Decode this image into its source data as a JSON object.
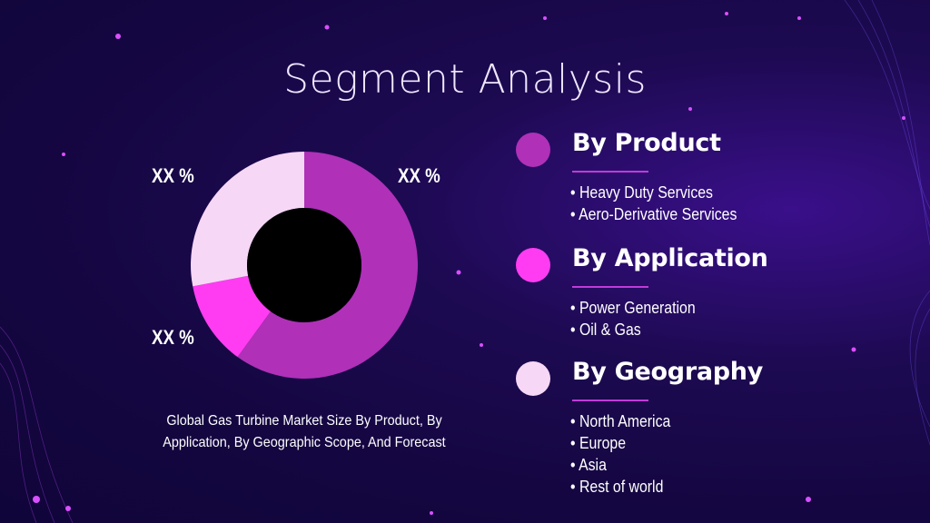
{
  "title": "Segment Analysis",
  "chart_data": {
    "type": "pie",
    "style": "donut",
    "values": [
      60,
      12,
      28
    ],
    "colors": [
      "#b030b8",
      "#ff3cf2",
      "#f7d7f6"
    ],
    "labels": [
      "XX %",
      "XX %",
      "XX %"
    ]
  },
  "caption": "Global Gas Turbine Market Size By Product, By Application, By Geographic Scope, And Forecast",
  "segments": [
    {
      "heading": "By Product",
      "color": "#b030b8",
      "items": [
        "Heavy Duty Services",
        "Aero-Derivative Services"
      ]
    },
    {
      "heading": "By Application",
      "color": "#ff3cf2",
      "items": [
        "Power Generation",
        "Oil & Gas"
      ]
    },
    {
      "heading": "By Geography",
      "color": "#f7d7f6",
      "items": [
        "North America",
        "Europe",
        "Asia",
        "Rest of world"
      ]
    }
  ]
}
